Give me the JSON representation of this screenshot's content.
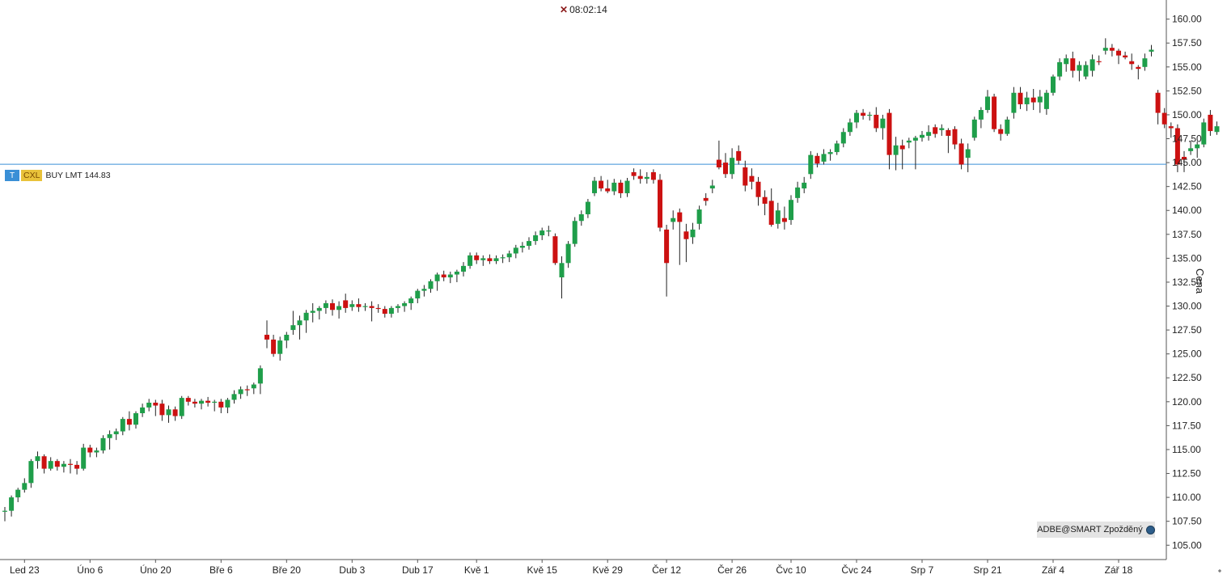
{
  "header": {
    "time_text": "08:02:14",
    "close_icon": "close-x-icon"
  },
  "order_line": {
    "price": 144.83,
    "tag_t": "T",
    "tag_cxl": "CXL",
    "text": "BUY LMT 144.83",
    "color": "#3a8fd6"
  },
  "source_badge": {
    "text": "ADBE@SMART Zpožděný",
    "icon": "globe-icon"
  },
  "colors": {
    "up": "#1f9e4a",
    "down": "#cc1111",
    "wick": "#222222",
    "axis": "#555555",
    "order_line": "#3a8fd6"
  },
  "chart_data": {
    "type": "candlestick",
    "ylabel": "Cena",
    "ylim": [
      103.5,
      162.0
    ],
    "yticks": [
      105.0,
      107.5,
      110.0,
      112.5,
      115.0,
      117.5,
      120.0,
      122.5,
      125.0,
      127.5,
      130.0,
      132.5,
      135.0,
      137.5,
      140.0,
      142.5,
      145.0,
      147.5,
      150.0,
      152.5,
      155.0,
      157.5,
      160.0
    ],
    "ytick_labels": [
      "105.00",
      "107.50",
      "110.00",
      "112.50",
      "115.00",
      "117.50",
      "120.00",
      "122.50",
      "125.00",
      "127.50",
      "130.00",
      "132.50",
      "135.00",
      "137.50",
      "140.00",
      "142.50",
      "145.00",
      "147.50",
      "150.00",
      "152.50",
      "155.00",
      "157.50",
      "160.00"
    ],
    "xticks": [
      {
        "index": 3,
        "label": "Led 23"
      },
      {
        "index": 13,
        "label": "Úno 6"
      },
      {
        "index": 23,
        "label": "Úno 20"
      },
      {
        "index": 33,
        "label": "Bře 6"
      },
      {
        "index": 43,
        "label": "Bře 20"
      },
      {
        "index": 53,
        "label": "Dub 3"
      },
      {
        "index": 63,
        "label": "Dub 17"
      },
      {
        "index": 72,
        "label": "Kvě 1"
      },
      {
        "index": 82,
        "label": "Kvě 15"
      },
      {
        "index": 92,
        "label": "Kvě 29"
      },
      {
        "index": 101,
        "label": "Čer 12"
      },
      {
        "index": 111,
        "label": "Čer 26"
      },
      {
        "index": 120,
        "label": "Čvc 10"
      },
      {
        "index": 130,
        "label": "Čvc 24"
      },
      {
        "index": 140,
        "label": "Srp 7"
      },
      {
        "index": 150,
        "label": "Srp 21"
      },
      {
        "index": 160,
        "label": "Zář 4"
      },
      {
        "index": 170,
        "label": "Zář 18"
      }
    ],
    "ohlc": [
      [
        108.5,
        109.0,
        107.5,
        108.6
      ],
      [
        108.6,
        110.2,
        108.0,
        110.0
      ],
      [
        110.0,
        111.0,
        109.5,
        110.8
      ],
      [
        110.8,
        112.0,
        110.5,
        111.5
      ],
      [
        111.5,
        114.0,
        111.0,
        113.8
      ],
      [
        113.8,
        114.8,
        113.0,
        114.3
      ],
      [
        114.3,
        114.5,
        112.5,
        113.0
      ],
      [
        113.0,
        114.2,
        112.8,
        113.8
      ],
      [
        113.8,
        114.0,
        112.8,
        113.2
      ],
      [
        113.2,
        113.8,
        112.6,
        113.5
      ],
      [
        113.5,
        114.0,
        112.5,
        113.4
      ],
      [
        113.4,
        113.8,
        112.4,
        113.0
      ],
      [
        113.0,
        115.6,
        112.8,
        115.2
      ],
      [
        115.2,
        115.5,
        114.2,
        114.7
      ],
      [
        114.7,
        115.2,
        114.2,
        114.9
      ],
      [
        114.9,
        116.5,
        114.6,
        116.2
      ],
      [
        116.2,
        117.0,
        115.0,
        116.6
      ],
      [
        116.6,
        117.2,
        116.0,
        116.9
      ],
      [
        116.9,
        118.4,
        116.5,
        118.2
      ],
      [
        118.2,
        119.0,
        117.0,
        117.6
      ],
      [
        117.6,
        119.0,
        117.2,
        118.8
      ],
      [
        118.8,
        119.8,
        118.4,
        119.4
      ],
      [
        119.4,
        120.3,
        119.0,
        119.9
      ],
      [
        119.9,
        120.2,
        118.5,
        119.6
      ],
      [
        119.8,
        120.2,
        118.0,
        118.6
      ],
      [
        118.6,
        119.6,
        117.8,
        119.2
      ],
      [
        119.2,
        119.5,
        118.0,
        118.5
      ],
      [
        118.5,
        120.6,
        118.2,
        120.4
      ],
      [
        120.4,
        120.6,
        119.6,
        120.0
      ],
      [
        120.0,
        120.3,
        119.4,
        119.8
      ],
      [
        119.8,
        120.3,
        119.2,
        120.1
      ],
      [
        120.1,
        120.5,
        119.5,
        119.9
      ],
      [
        119.9,
        120.2,
        119.0,
        120.0
      ],
      [
        120.0,
        120.3,
        118.8,
        119.4
      ],
      [
        119.4,
        120.4,
        118.8,
        120.2
      ],
      [
        120.2,
        121.2,
        119.8,
        120.8
      ],
      [
        120.8,
        121.6,
        120.3,
        121.3
      ],
      [
        121.3,
        121.7,
        120.6,
        121.2
      ],
      [
        121.4,
        122.0,
        120.8,
        121.8
      ],
      [
        121.9,
        123.8,
        120.8,
        123.5
      ],
      [
        127.0,
        128.5,
        125.6,
        126.5
      ],
      [
        126.5,
        127.0,
        124.7,
        125.0
      ],
      [
        125.0,
        126.8,
        124.3,
        126.4
      ],
      [
        126.4,
        127.3,
        125.6,
        127.0
      ],
      [
        127.5,
        129.5,
        127.0,
        128.0
      ],
      [
        128.0,
        129.0,
        126.5,
        128.5
      ],
      [
        128.5,
        129.6,
        127.2,
        129.3
      ],
      [
        129.3,
        130.3,
        128.3,
        129.5
      ],
      [
        129.5,
        130.0,
        128.6,
        129.8
      ],
      [
        129.8,
        130.6,
        129.2,
        130.3
      ],
      [
        130.3,
        130.7,
        129.0,
        129.6
      ],
      [
        129.6,
        130.5,
        128.7,
        130.0
      ],
      [
        130.6,
        131.3,
        129.3,
        129.8
      ],
      [
        129.9,
        130.6,
        129.5,
        130.2
      ],
      [
        130.2,
        130.8,
        129.4,
        129.9
      ],
      [
        129.9,
        130.3,
        129.5,
        130.0
      ],
      [
        130.0,
        130.5,
        128.4,
        129.8
      ],
      [
        129.8,
        130.2,
        129.3,
        129.7
      ],
      [
        129.7,
        130.0,
        128.8,
        129.2
      ],
      [
        129.2,
        130.0,
        128.8,
        129.8
      ],
      [
        129.8,
        130.2,
        129.3,
        130.0
      ],
      [
        130.0,
        130.5,
        129.4,
        130.3
      ],
      [
        130.3,
        131.0,
        129.6,
        130.8
      ],
      [
        130.8,
        131.8,
        130.3,
        131.6
      ],
      [
        131.6,
        132.2,
        131.0,
        131.8
      ],
      [
        131.8,
        132.8,
        131.4,
        132.6
      ],
      [
        132.6,
        133.5,
        131.6,
        133.3
      ],
      [
        133.3,
        133.7,
        132.6,
        133.0
      ],
      [
        133.0,
        133.6,
        132.4,
        133.3
      ],
      [
        133.3,
        133.8,
        132.5,
        133.6
      ],
      [
        133.6,
        134.6,
        133.1,
        134.2
      ],
      [
        134.2,
        135.6,
        133.9,
        135.3
      ],
      [
        135.3,
        135.6,
        134.4,
        134.8
      ],
      [
        134.8,
        135.3,
        134.2,
        135.0
      ],
      [
        135.0,
        135.4,
        134.4,
        134.7
      ],
      [
        134.7,
        135.3,
        134.4,
        135.0
      ],
      [
        135.0,
        135.4,
        134.5,
        135.1
      ],
      [
        135.1,
        135.8,
        134.6,
        135.5
      ],
      [
        135.5,
        136.4,
        135.0,
        136.1
      ],
      [
        136.1,
        136.7,
        135.6,
        136.3
      ],
      [
        136.3,
        137.2,
        135.9,
        136.8
      ],
      [
        136.8,
        137.8,
        136.4,
        137.4
      ],
      [
        137.4,
        138.2,
        136.9,
        137.9
      ],
      [
        137.9,
        138.4,
        137.3,
        137.9
      ],
      [
        137.3,
        137.6,
        134.3,
        134.5
      ],
      [
        133.0,
        135.2,
        130.8,
        134.5
      ],
      [
        134.5,
        136.8,
        134.0,
        136.5
      ],
      [
        136.5,
        139.3,
        136.2,
        138.9
      ],
      [
        138.9,
        140.0,
        138.4,
        139.6
      ],
      [
        139.6,
        141.2,
        139.2,
        140.9
      ],
      [
        141.8,
        143.5,
        141.5,
        143.1
      ],
      [
        143.1,
        143.6,
        142.0,
        142.3
      ],
      [
        142.3,
        143.2,
        141.8,
        142.0
      ],
      [
        142.0,
        143.3,
        141.6,
        142.9
      ],
      [
        142.9,
        143.2,
        141.3,
        141.8
      ],
      [
        141.8,
        143.4,
        141.4,
        143.1
      ],
      [
        144.0,
        144.4,
        143.2,
        143.6
      ],
      [
        143.6,
        144.3,
        142.8,
        143.3
      ],
      [
        143.3,
        144.0,
        142.8,
        143.5
      ],
      [
        144.0,
        144.3,
        142.8,
        143.2
      ],
      [
        143.2,
        143.8,
        137.8,
        138.2
      ],
      [
        138.0,
        138.5,
        131.0,
        134.5
      ],
      [
        138.8,
        140.0,
        138.0,
        139.2
      ],
      [
        139.8,
        140.2,
        134.3,
        138.8
      ],
      [
        137.8,
        138.6,
        134.6,
        137.0
      ],
      [
        137.2,
        138.7,
        136.5,
        138.0
      ],
      [
        138.6,
        140.5,
        138.0,
        140.1
      ],
      [
        141.3,
        141.8,
        140.5,
        141.0
      ],
      [
        142.3,
        143.2,
        141.8,
        142.6
      ],
      [
        145.3,
        147.3,
        144.3,
        144.5
      ],
      [
        145.0,
        146.0,
        143.4,
        143.8
      ],
      [
        143.8,
        146.5,
        143.3,
        145.5
      ],
      [
        146.2,
        146.8,
        144.8,
        145.2
      ],
      [
        144.5,
        145.2,
        142.0,
        142.6
      ],
      [
        143.6,
        144.4,
        142.2,
        143.0
      ],
      [
        143.0,
        143.5,
        140.5,
        141.4
      ],
      [
        141.4,
        142.1,
        139.5,
        140.7
      ],
      [
        141.0,
        142.3,
        138.3,
        138.5
      ],
      [
        138.6,
        140.8,
        138.1,
        140.0
      ],
      [
        139.2,
        140.4,
        138.0,
        138.8
      ],
      [
        139.0,
        141.6,
        138.5,
        141.1
      ],
      [
        141.3,
        143.0,
        140.8,
        142.4
      ],
      [
        142.3,
        143.5,
        141.8,
        142.9
      ],
      [
        143.8,
        146.2,
        143.3,
        145.8
      ],
      [
        145.7,
        146.0,
        144.5,
        144.9
      ],
      [
        145.1,
        146.4,
        144.8,
        145.9
      ],
      [
        145.9,
        146.4,
        145.2,
        146.1
      ],
      [
        146.1,
        147.3,
        145.8,
        147.0
      ],
      [
        147.0,
        148.6,
        146.6,
        148.2
      ],
      [
        148.2,
        149.6,
        147.8,
        149.2
      ],
      [
        149.2,
        150.5,
        148.6,
        150.2
      ],
      [
        150.2,
        150.6,
        149.5,
        149.9
      ],
      [
        149.9,
        150.3,
        149.4,
        150.0
      ],
      [
        150.0,
        150.8,
        148.2,
        148.6
      ],
      [
        148.6,
        150.0,
        147.4,
        149.6
      ],
      [
        150.2,
        150.6,
        144.3,
        145.8
      ],
      [
        145.8,
        147.7,
        144.2,
        146.8
      ],
      [
        146.8,
        147.4,
        144.3,
        146.4
      ],
      [
        147.1,
        147.6,
        146.5,
        147.3
      ],
      [
        147.3,
        147.8,
        144.3,
        147.6
      ],
      [
        147.6,
        148.3,
        147.2,
        147.9
      ],
      [
        147.8,
        148.9,
        147.3,
        148.2
      ],
      [
        148.7,
        149.0,
        147.6,
        148.0
      ],
      [
        148.4,
        149.0,
        147.8,
        148.6
      ],
      [
        148.4,
        148.6,
        146.0,
        147.8
      ],
      [
        148.5,
        148.8,
        146.4,
        146.9
      ],
      [
        147.0,
        147.5,
        144.3,
        144.8
      ],
      [
        145.5,
        147.0,
        144.0,
        146.4
      ],
      [
        147.6,
        149.8,
        147.3,
        149.5
      ],
      [
        149.5,
        150.8,
        148.6,
        150.5
      ],
      [
        150.5,
        152.6,
        150.2,
        151.9
      ],
      [
        151.9,
        152.2,
        148.2,
        148.5
      ],
      [
        148.5,
        149.0,
        147.3,
        148.0
      ],
      [
        148.0,
        149.8,
        147.8,
        149.5
      ],
      [
        150.2,
        152.9,
        149.6,
        152.3
      ],
      [
        152.3,
        152.9,
        150.6,
        151.1
      ],
      [
        151.1,
        152.4,
        150.4,
        151.8
      ],
      [
        151.8,
        152.7,
        150.5,
        151.3
      ],
      [
        151.3,
        152.6,
        150.2,
        151.9
      ],
      [
        150.6,
        152.6,
        150.0,
        152.3
      ],
      [
        152.3,
        154.2,
        152.0,
        154.0
      ],
      [
        154.0,
        155.9,
        153.6,
        155.5
      ],
      [
        155.3,
        156.3,
        154.5,
        155.9
      ],
      [
        155.9,
        156.6,
        153.9,
        154.6
      ],
      [
        154.6,
        155.6,
        153.5,
        155.2
      ],
      [
        154.0,
        155.6,
        153.7,
        155.2
      ],
      [
        154.6,
        156.3,
        154.0,
        155.8
      ],
      [
        155.6,
        156.2,
        155.2,
        155.5
      ],
      [
        156.7,
        158.0,
        156.3,
        157.0
      ],
      [
        157.0,
        157.4,
        156.1,
        156.7
      ],
      [
        156.7,
        156.9,
        155.3,
        156.2
      ],
      [
        156.2,
        156.6,
        155.8,
        156.0
      ],
      [
        155.6,
        156.4,
        154.7,
        155.3
      ],
      [
        155.0,
        155.2,
        153.7,
        154.8
      ],
      [
        155.0,
        156.4,
        154.6,
        155.9
      ],
      [
        156.6,
        157.3,
        156.1,
        156.8
      ],
      [
        152.3,
        152.6,
        149.0,
        150.2
      ],
      [
        150.2,
        150.7,
        148.6,
        149.0
      ],
      [
        148.8,
        149.2,
        147.6,
        148.6
      ],
      [
        148.6,
        149.0,
        144.0,
        144.8
      ],
      [
        145.6,
        146.2,
        144.0,
        145.3
      ],
      [
        146.2,
        147.3,
        145.8,
        146.5
      ],
      [
        146.5,
        147.2,
        145.5,
        146.9
      ],
      [
        146.9,
        149.6,
        146.6,
        149.2
      ],
      [
        150.0,
        150.5,
        147.8,
        148.3
      ],
      [
        148.2,
        149.3,
        147.9,
        148.8
      ]
    ]
  }
}
